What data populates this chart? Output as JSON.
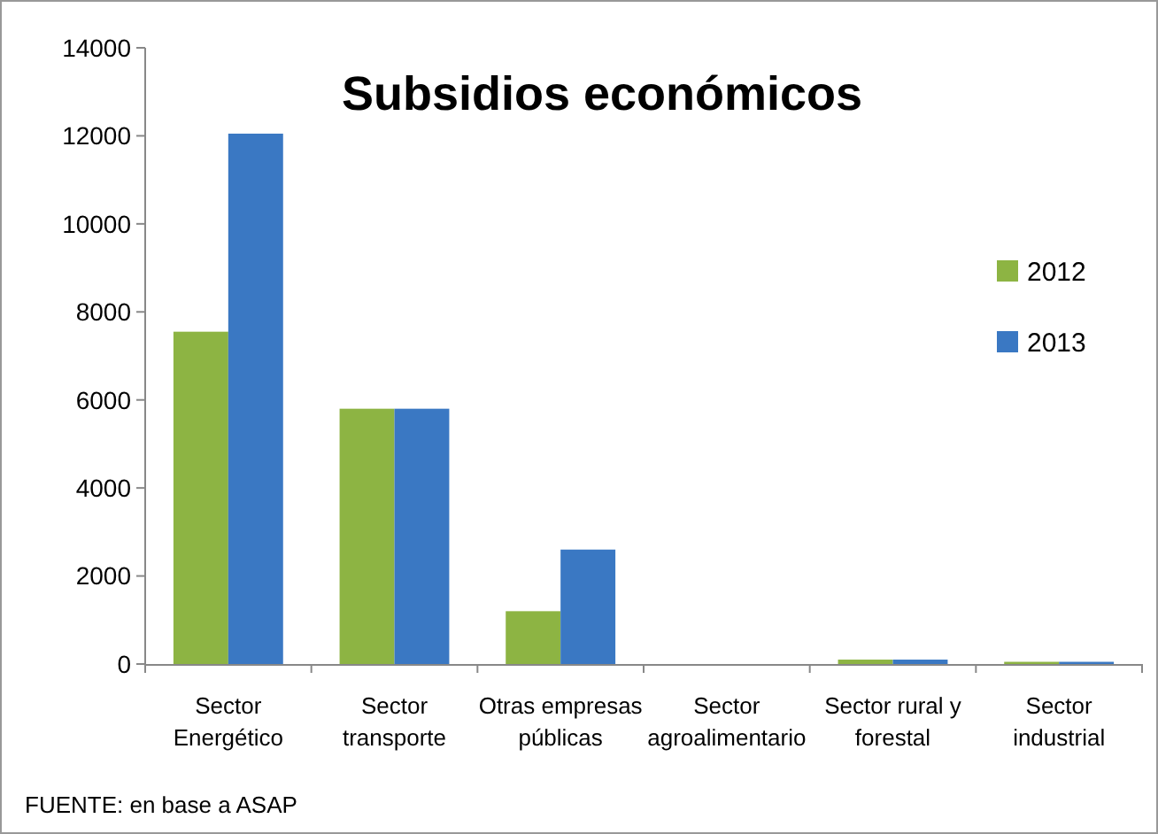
{
  "chart_data": {
    "type": "bar",
    "title": "Subsidios económicos",
    "categories": [
      "Sector\nEnergético",
      "Sector\ntransporte",
      "Otras empresas\npúblicas",
      "Sector\nagroalimentario",
      "Sector rural y\nforestal",
      "Sector\nindustrial"
    ],
    "series": [
      {
        "name": "2012",
        "color": "#8db443",
        "values": [
          7550,
          5800,
          1200,
          0,
          100,
          50
        ]
      },
      {
        "name": "2013",
        "color": "#3a78c3",
        "values": [
          12050,
          5800,
          2600,
          0,
          100,
          50
        ]
      }
    ],
    "ylim": [
      0,
      14000
    ],
    "yticks": [
      0,
      2000,
      4000,
      6000,
      8000,
      10000,
      12000,
      14000
    ],
    "grid": false,
    "legend": "right",
    "annotations": [
      "FUENTE: en base a ASAP"
    ]
  }
}
